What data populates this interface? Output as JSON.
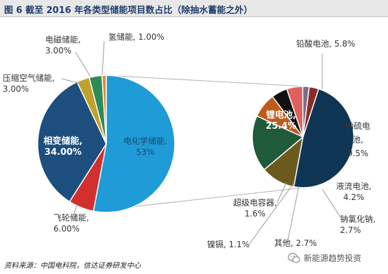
{
  "page": {
    "title": "图 6 截至 2016 年各类型储能项目数占比（除抽水蓄能之外）",
    "source": "资料来源：中国电科院，信达证券研发中心",
    "watermark": "新能源趋势投资"
  },
  "chart_data": [
    {
      "type": "pie",
      "slices": [
        {
          "name": "电化学储能",
          "value": 53,
          "label_line1": "电化学储能,",
          "label_line2": "53%",
          "color": "#1f9bd7"
        },
        {
          "name": "飞轮储能",
          "value": 6.0,
          "label_line1": "飞轮储能,",
          "label_line2": "6.00%",
          "color": "#d32f2f"
        },
        {
          "name": "相变储能",
          "value": 34.0,
          "label_line1": "相变储能,",
          "label_line2": "34.00%",
          "color": "#1c4f7d"
        },
        {
          "name": "压缩空气储能",
          "value": 3.0,
          "label_line1": "压缩空气储能,",
          "label_line2": "3.00%",
          "color": "#c2a02e"
        },
        {
          "name": "电磁储能",
          "value": 3.0,
          "label_line1": "电磁储能,",
          "label_line2": "3.00%",
          "color": "#2e8b57"
        },
        {
          "name": "氢储能",
          "value": 1.0,
          "label_line1": "氢储能, 1.00%",
          "label_line2": "",
          "color": "#e08b3a"
        }
      ]
    },
    {
      "type": "pie",
      "slices": [
        {
          "name": "锂电池",
          "value": 25.4,
          "label_line1": "锂电池,",
          "label_line2": "25.4%",
          "color": "#0f3554"
        },
        {
          "name": "铅酸电池",
          "value": 5.8,
          "label_line1": "铅酸电池, 5.8%",
          "label_line2": "",
          "color": "#6b5a1e"
        },
        {
          "name": "钠硫电池",
          "value": 9.5,
          "label_line1": "钠硫电",
          "label_line2": "池,",
          "label_line3": "9.5%",
          "color": "#1f5a3a"
        },
        {
          "name": "液流电池",
          "value": 4.2,
          "label_line1": "液流电池,",
          "label_line2": "4.2%",
          "color": "#c05a1a"
        },
        {
          "name": "钠氯化钠",
          "value": 2.7,
          "label_line1": "钠氯化钠,",
          "label_line2": "2.7%",
          "color": "#111111"
        },
        {
          "name": "其他",
          "value": 2.7,
          "label_line1": "其他, 2.7%",
          "label_line2": "",
          "color": "#e06060"
        },
        {
          "name": "镍镉",
          "value": 1.1,
          "label_line1": "镍镉, 1.1%",
          "label_line2": "",
          "color": "#7a6f8a"
        },
        {
          "name": "超级电容器",
          "value": 1.6,
          "label_line1": "超级电容器,",
          "label_line2": "1.6%",
          "color": "#8b2a2a"
        }
      ]
    }
  ]
}
